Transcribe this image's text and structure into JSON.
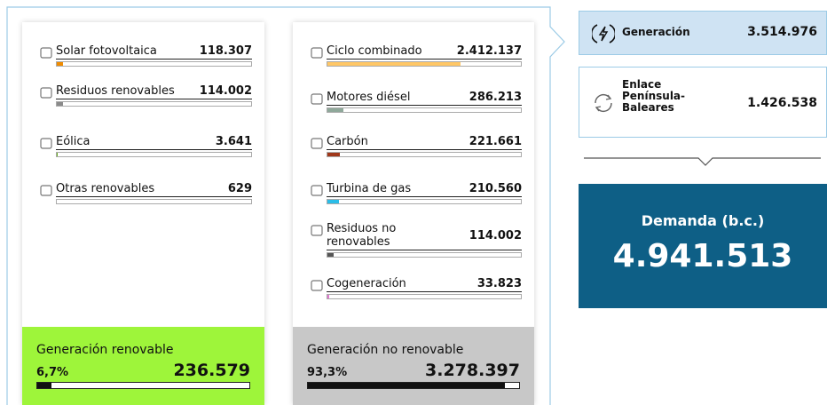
{
  "renewable": {
    "items": [
      {
        "label": "Solar fotovoltaica",
        "value": {
          "value": 118307,
          "label": "118.307"
        },
        "color": "#f08c00"
      },
      {
        "label": "Residuos renovables",
        "value": {
          "value": 114002,
          "label": "114.002"
        },
        "color": "#8a8a8a"
      },
      {
        "label": "Eólica",
        "value": {
          "value": 3641,
          "label": "3.641"
        },
        "color": "#6ab023"
      },
      {
        "label": "Otras renovables",
        "value": {
          "value": 629,
          "label": "629"
        },
        "color": "#b06ad0"
      }
    ],
    "total": {
      "label": "Generación renovable",
      "share": {
        "value": 6.7,
        "label": "6,7%"
      },
      "value": {
        "value": 236579,
        "label": "236.579"
      },
      "color": "#9ef53a"
    }
  },
  "non_renewable": {
    "items": [
      {
        "label": "Ciclo combinado",
        "value": {
          "value": 2412137,
          "label": "2.412.137"
        },
        "color": "#ffc766"
      },
      {
        "label": "Motores diésel",
        "value": {
          "value": 286213,
          "label": "286.213"
        },
        "color": "#8fa89a"
      },
      {
        "label": "Carbón",
        "value": {
          "value": 221661,
          "label": "221.661"
        },
        "color": "#a0371a"
      },
      {
        "label": "Turbina de gas",
        "value": {
          "value": 210560,
          "label": "210.560"
        },
        "color": "#2bbde8"
      },
      {
        "label": "Residuos no renovables",
        "value": {
          "value": 114002,
          "label": "114.002"
        },
        "color": "#555555"
      },
      {
        "label": "Cogeneración",
        "value": {
          "value": 33823,
          "label": "33.823"
        },
        "color": "#e07ad0"
      }
    ],
    "total": {
      "label": "Generación no renovable",
      "share": {
        "value": 93.3,
        "label": "93,3%"
      },
      "value": {
        "value": 3278397,
        "label": "3.278.397"
      },
      "color": "#c8c8c8"
    }
  },
  "generation": {
    "label": "Generación",
    "value": {
      "value": 3514976,
      "label": "3.514.976"
    }
  },
  "link": {
    "label": "Enlace Península-Baleares",
    "value": "1.426.538"
  },
  "demand": {
    "label": "Demanda (b.c.)",
    "value": "4.941.513"
  }
}
